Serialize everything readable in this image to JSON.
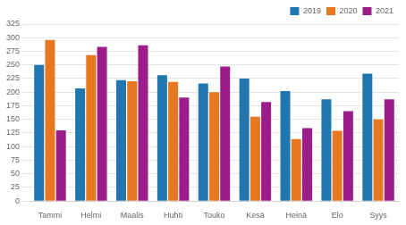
{
  "chart_data": {
    "type": "bar",
    "categories": [
      "Tammi",
      "Helmi",
      "Maalis",
      "Huhti",
      "Touko",
      "Kesä",
      "Heinä",
      "Elo",
      "Syys"
    ],
    "series": [
      {
        "name": "2019",
        "color": "#2176AE",
        "values": [
          250,
          207,
          222,
          231,
          216,
          225,
          202,
          187,
          234
        ]
      },
      {
        "name": "2020",
        "color": "#E87722",
        "values": [
          296,
          268,
          220,
          219,
          200,
          155,
          114,
          129,
          150
        ]
      },
      {
        "name": "2021",
        "color": "#9B1D8A",
        "values": [
          130,
          283,
          286,
          190,
          247,
          182,
          134,
          165,
          187
        ]
      }
    ],
    "ylim": [
      0,
      325
    ],
    "yticks": [
      0,
      25,
      50,
      75,
      100,
      125,
      150,
      175,
      200,
      225,
      250,
      275,
      300,
      325
    ],
    "grid": true,
    "legend": "upper right"
  }
}
